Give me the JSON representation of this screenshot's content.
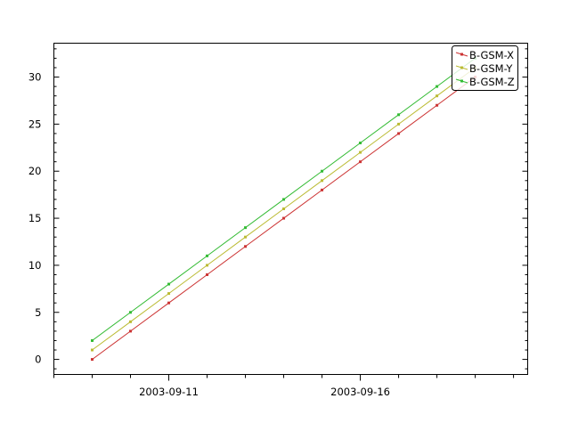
{
  "chart_data": {
    "type": "line",
    "x": [
      "2003-09-09",
      "2003-09-10",
      "2003-09-11",
      "2003-09-12",
      "2003-09-13",
      "2003-09-14",
      "2003-09-15",
      "2003-09-16",
      "2003-09-17",
      "2003-09-18",
      "2003-09-19"
    ],
    "series": [
      {
        "name": "B-GSM-X",
        "color": "#cc3333",
        "values": [
          0,
          3,
          6,
          9,
          12,
          15,
          18,
          21,
          24,
          27,
          30
        ]
      },
      {
        "name": "B-GSM-Y",
        "color": "#bbbb33",
        "values": [
          1,
          4,
          7,
          10,
          13,
          16,
          19,
          22,
          25,
          28,
          31
        ]
      },
      {
        "name": "B-GSM-Z",
        "color": "#33bb33",
        "values": [
          2,
          5,
          8,
          11,
          14,
          17,
          20,
          23,
          26,
          29,
          32
        ]
      }
    ],
    "xlim": [
      "2003-09-08",
      "2003-09-20.37"
    ],
    "ylim": [
      -1.6,
      33.6
    ],
    "x_tick_labels": [
      "2003-09-11",
      "2003-09-16"
    ],
    "y_ticks": [
      0,
      5,
      10,
      15,
      20,
      25,
      30
    ],
    "legend_placement": "top-right",
    "grid": false,
    "title": "",
    "xlabel": "",
    "ylabel": ""
  }
}
